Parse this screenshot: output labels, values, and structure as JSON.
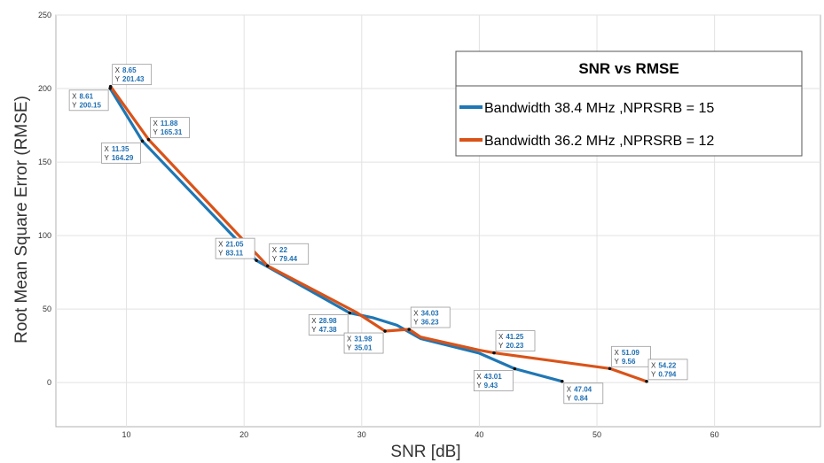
{
  "chart_data": {
    "type": "line",
    "title": "",
    "xlabel": "SNR [dB]",
    "ylabel": "Root Mean Square Error (RMSE)",
    "xlim": [
      4,
      69
    ],
    "ylim": [
      -30,
      250
    ],
    "xticks": [
      10,
      20,
      30,
      40,
      50,
      60
    ],
    "yticks": [
      0,
      50,
      100,
      150,
      200,
      250
    ],
    "grid": true,
    "legend": {
      "title": "SNR vs RMSE",
      "position": "top-right"
    },
    "series": [
      {
        "name": "Bandwidth 38.4 MHz ,NPRSRB = 15",
        "color": "#1f77b4",
        "points": [
          {
            "x": 8.61,
            "y": 200.15
          },
          {
            "x": 11.35,
            "y": 164.29
          },
          {
            "x": 21.05,
            "y": 83.11
          },
          {
            "x": 28.98,
            "y": 47.38
          },
          {
            "x": 31.0,
            "y": 44.0
          },
          {
            "x": 33.0,
            "y": 39.0
          },
          {
            "x": 35.0,
            "y": 30.0
          },
          {
            "x": 40.0,
            "y": 20.0
          },
          {
            "x": 43.01,
            "y": 9.43
          },
          {
            "x": 47.04,
            "y": 0.84
          }
        ]
      },
      {
        "name": "Bandwidth 36.2 MHz ,NPRSRB = 12",
        "color": "#d95319",
        "points": [
          {
            "x": 8.65,
            "y": 201.43
          },
          {
            "x": 11.88,
            "y": 165.31
          },
          {
            "x": 22.0,
            "y": 79.44
          },
          {
            "x": 29.5,
            "y": 48.0
          },
          {
            "x": 31.98,
            "y": 35.01
          },
          {
            "x": 34.03,
            "y": 36.23
          },
          {
            "x": 35.0,
            "y": 31.0
          },
          {
            "x": 40.0,
            "y": 22.0
          },
          {
            "x": 41.25,
            "y": 20.23
          },
          {
            "x": 51.09,
            "y": 9.56
          },
          {
            "x": 54.22,
            "y": 0.794
          }
        ]
      }
    ],
    "datatips": [
      {
        "x": 8.61,
        "y": 200.15,
        "x_label": "X",
        "y_label": "Y",
        "x_text": "8.61",
        "y_text": "200.15",
        "anchor": "bottom-left"
      },
      {
        "x": 8.65,
        "y": 201.43,
        "x_label": "X",
        "y_label": "Y",
        "x_text": "8.65",
        "y_text": "201.43",
        "anchor": "top-right"
      },
      {
        "x": 11.35,
        "y": 164.29,
        "x_label": "X",
        "y_label": "Y",
        "x_text": "11.35",
        "y_text": "164.29",
        "anchor": "bottom-left"
      },
      {
        "x": 11.88,
        "y": 165.31,
        "x_label": "X",
        "y_label": "Y",
        "x_text": "11.88",
        "y_text": "165.31",
        "anchor": "top-right"
      },
      {
        "x": 21.05,
        "y": 83.11,
        "x_label": "X",
        "y_label": "Y",
        "x_text": "21.05",
        "y_text": "83.11",
        "anchor": "top-left"
      },
      {
        "x": 22.0,
        "y": 79.44,
        "x_label": "X",
        "y_label": "Y",
        "x_text": "22",
        "y_text": "79.44",
        "anchor": "top-right"
      },
      {
        "x": 28.98,
        "y": 47.38,
        "x_label": "X",
        "y_label": "Y",
        "x_text": "28.98",
        "y_text": "47.38",
        "anchor": "bottom-left"
      },
      {
        "x": 31.98,
        "y": 35.01,
        "x_label": "X",
        "y_label": "Y",
        "x_text": "31.98",
        "y_text": "35.01",
        "anchor": "bottom-left"
      },
      {
        "x": 34.03,
        "y": 36.23,
        "x_label": "X",
        "y_label": "Y",
        "x_text": "34.03",
        "y_text": "36.23",
        "anchor": "top-right"
      },
      {
        "x": 41.25,
        "y": 20.23,
        "x_label": "X",
        "y_label": "Y",
        "x_text": "41.25",
        "y_text": "20.23",
        "anchor": "top-right"
      },
      {
        "x": 43.01,
        "y": 9.43,
        "x_label": "X",
        "y_label": "Y",
        "x_text": "43.01",
        "y_text": "9.43",
        "anchor": "bottom-left"
      },
      {
        "x": 47.04,
        "y": 0.84,
        "x_label": "X",
        "y_label": "Y",
        "x_text": "47.04",
        "y_text": "0.84",
        "anchor": "bottom-right"
      },
      {
        "x": 51.09,
        "y": 9.56,
        "x_label": "X",
        "y_label": "Y",
        "x_text": "51.09",
        "y_text": "9.56",
        "anchor": "top-right"
      },
      {
        "x": 54.22,
        "y": 0.794,
        "x_label": "X",
        "y_label": "Y",
        "x_text": "54.22",
        "y_text": "0.794",
        "anchor": "top-right"
      }
    ]
  }
}
